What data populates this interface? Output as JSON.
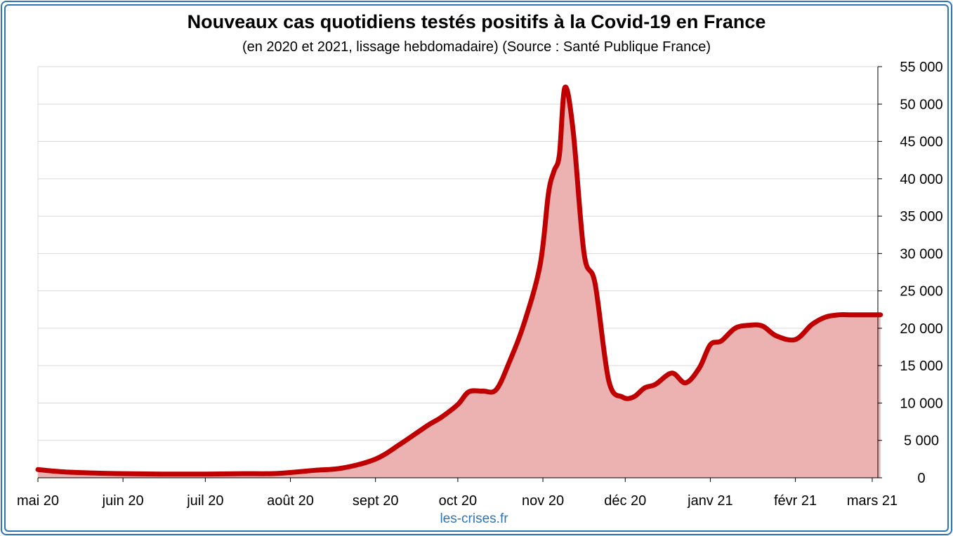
{
  "chart_data": {
    "type": "area",
    "title": "Nouveaux cas quotidiens testés positifs à la Covid-19 en France",
    "subtitle": "(en 2020 et 2021, lissage hebdomadaire) (Source : Santé Publique France)",
    "xlabel": "",
    "ylabel": "",
    "x_tick_labels": [
      "mai 20",
      "juin 20",
      "juil 20",
      "août 20",
      "sept 20",
      "oct 20",
      "nov 20",
      "déc 20",
      "janv 21",
      "févr 21",
      "mars 21"
    ],
    "y_tick_labels": [
      "0",
      "5 000",
      "10 000",
      "15 000",
      "20 000",
      "25 000",
      "30 000",
      "35 000",
      "40 000",
      "45 000",
      "50 000",
      "55 000"
    ],
    "ylim": [
      0,
      55000
    ],
    "y_axis_side": "right",
    "grid": true,
    "legend": "none",
    "series": [
      {
        "color": "#c00000",
        "fill_color": "#ecb2b2",
        "x": [
          "2020-05-01",
          "2020-05-10",
          "2020-05-20",
          "2020-06-01",
          "2020-06-15",
          "2020-07-01",
          "2020-07-15",
          "2020-07-25",
          "2020-08-01",
          "2020-08-10",
          "2020-08-20",
          "2020-09-01",
          "2020-09-10",
          "2020-09-20",
          "2020-09-25",
          "2020-10-01",
          "2020-10-05",
          "2020-10-10",
          "2020-10-15",
          "2020-10-20",
          "2020-10-25",
          "2020-10-31",
          "2020-11-03",
          "2020-11-05",
          "2020-11-07",
          "2020-11-09",
          "2020-11-12",
          "2020-11-16",
          "2020-11-20",
          "2020-11-25",
          "2020-11-30",
          "2020-12-04",
          "2020-12-08",
          "2020-12-12",
          "2020-12-18",
          "2020-12-23",
          "2020-12-28",
          "2021-01-01",
          "2021-01-05",
          "2021-01-10",
          "2021-01-15",
          "2021-01-20",
          "2021-01-25",
          "2021-02-01",
          "2021-02-07",
          "2021-02-12",
          "2021-02-17",
          "2021-02-21",
          "2021-02-25",
          "2021-03-01",
          "2021-03-04"
        ],
        "values": [
          1100,
          800,
          650,
          550,
          500,
          500,
          550,
          550,
          700,
          1000,
          1300,
          2500,
          4500,
          7000,
          8100,
          9800,
          11500,
          11600,
          11800,
          15700,
          20500,
          28500,
          38000,
          41000,
          43200,
          52200,
          46500,
          30000,
          26000,
          13000,
          10800,
          10800,
          12000,
          12500,
          14000,
          12700,
          14700,
          17800,
          18300,
          20000,
          20400,
          20300,
          19000,
          18500,
          20500,
          21500,
          21800,
          21800,
          21800,
          21800,
          21800
        ]
      }
    ]
  },
  "footer": {
    "credit": "les-crises.fr"
  },
  "colors": {
    "frame": "#2e75b6",
    "credit": "#2e75b6",
    "gridline": "#d9d9d9",
    "axis": "#000000"
  }
}
